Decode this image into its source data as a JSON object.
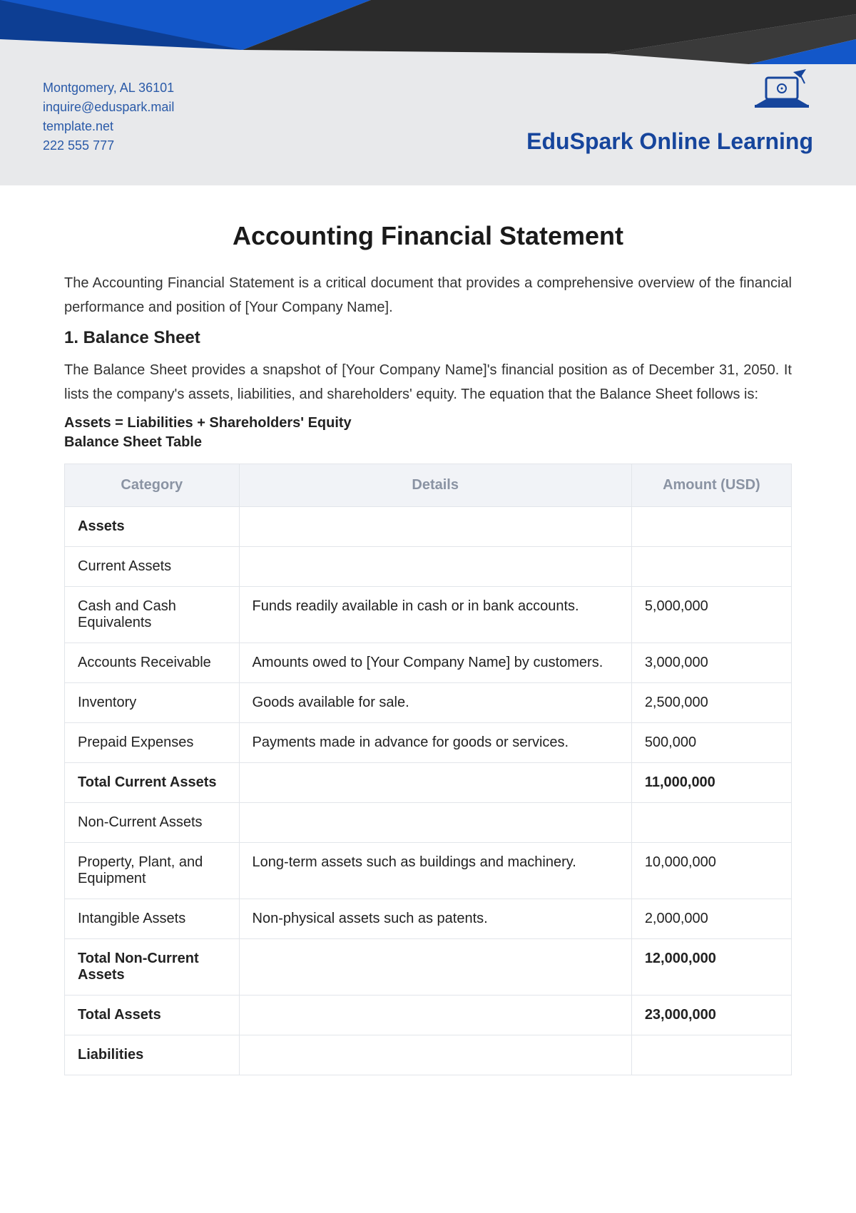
{
  "colors": {
    "header_bg": "#e8e9eb",
    "banner_blue": "#1357c9",
    "banner_blue_light": "#2b6fe0",
    "banner_dark": "#2b2b2b",
    "contact_text": "#2a5aa8",
    "brand_text": "#16459c",
    "table_header_bg": "#f1f3f7",
    "table_header_text": "#8a93a3",
    "border": "#e2e5ea",
    "body_text": "#222222"
  },
  "header": {
    "contact": {
      "address": "Montgomery, AL 36101",
      "email": "inquire@eduspark.mail",
      "website": "template.net",
      "phone": "222 555 777"
    },
    "brand_name": "EduSpark Online Learning"
  },
  "document": {
    "title": "Accounting Financial Statement",
    "intro": "The Accounting Financial Statement is a critical document that provides a comprehensive overview of the financial performance and position of [Your Company Name].",
    "section1": {
      "heading": "1. Balance Sheet",
      "intro": "The Balance Sheet provides a snapshot of [Your Company Name]'s financial position as of December 31, 2050. It lists the company's assets, liabilities, and shareholders' equity. The equation that the Balance Sheet follows is:",
      "equation": "Assets = Liabilities + Shareholders' Equity",
      "table_title": "Balance Sheet Table"
    }
  },
  "table": {
    "columns": [
      "Category",
      "Details",
      "Amount (USD)"
    ],
    "rows": [
      {
        "type": "section",
        "category": "Assets",
        "details": "",
        "amount": ""
      },
      {
        "type": "sub",
        "category": "Current Assets",
        "details": "",
        "amount": ""
      },
      {
        "type": "item",
        "category": "Cash and Cash Equivalents",
        "details": "Funds readily available in cash or in bank accounts.",
        "amount": "5,000,000"
      },
      {
        "type": "item",
        "category": "Accounts Receivable",
        "details": "Amounts owed to [Your Company Name] by customers.",
        "amount": "3,000,000"
      },
      {
        "type": "item",
        "category": "Inventory",
        "details": "Goods available for sale.",
        "amount": "2,500,000"
      },
      {
        "type": "item",
        "category": "Prepaid Expenses",
        "details": "Payments made in advance for goods or services.",
        "amount": "500,000"
      },
      {
        "type": "total",
        "category": "Total Current Assets",
        "details": "",
        "amount": "11,000,000"
      },
      {
        "type": "sub",
        "category": "Non-Current Assets",
        "details": "",
        "amount": ""
      },
      {
        "type": "item",
        "category": "Property, Plant, and Equipment",
        "details": "Long-term assets such as buildings and machinery.",
        "amount": "10,000,000"
      },
      {
        "type": "item",
        "category": "Intangible Assets",
        "details": "Non-physical assets such as patents.",
        "amount": "2,000,000"
      },
      {
        "type": "total",
        "category": "Total Non-Current Assets",
        "details": "",
        "amount": "12,000,000"
      },
      {
        "type": "total",
        "category": "Total Assets",
        "details": "",
        "amount": "23,000,000"
      },
      {
        "type": "section",
        "category": "Liabilities",
        "details": "",
        "amount": ""
      }
    ]
  }
}
